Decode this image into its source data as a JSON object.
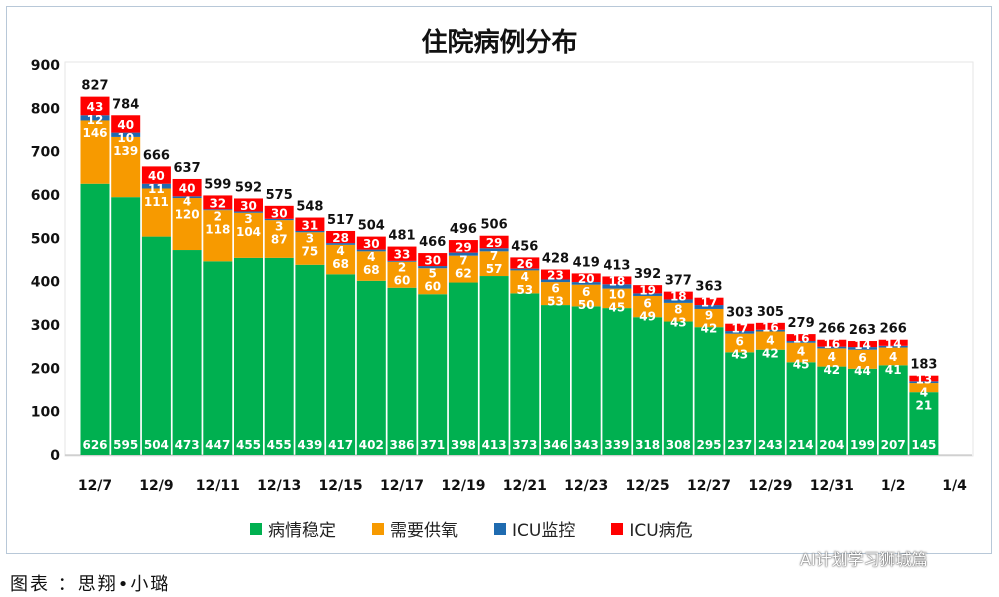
{
  "chart_data": {
    "type": "bar",
    "stacked": true,
    "title": "住院病例分布",
    "categories": [
      "12/7",
      "12/8",
      "12/9",
      "12/10",
      "12/11",
      "12/12",
      "12/13",
      "12/14",
      "12/15",
      "12/16",
      "12/17",
      "12/18",
      "12/19",
      "12/20",
      "12/21",
      "12/22",
      "12/23",
      "12/24",
      "12/25",
      "12/26",
      "12/27",
      "12/28",
      "12/29",
      "12/30",
      "12/31",
      "1/1",
      "1/2",
      "1/3"
    ],
    "x_tick_labels": [
      "12/7",
      "12/9",
      "12/11",
      "12/13",
      "12/15",
      "12/17",
      "12/19",
      "12/21",
      "12/23",
      "12/25",
      "12/27",
      "12/29",
      "12/31",
      "1/2",
      "1/4"
    ],
    "ylim": [
      0,
      900
    ],
    "y_ticks": [
      0,
      100,
      200,
      300,
      400,
      500,
      600,
      700,
      800,
      900
    ],
    "grid": false,
    "legend": "bottom",
    "series": [
      {
        "name": "病情稳定",
        "color": "#00b050",
        "values": [
          626,
          595,
          504,
          473,
          447,
          455,
          455,
          439,
          417,
          402,
          386,
          371,
          398,
          413,
          373,
          346,
          343,
          339,
          318,
          308,
          295,
          237,
          243,
          214,
          204,
          199,
          207,
          145
        ]
      },
      {
        "name": "需要供氧",
        "color": "#f79a00",
        "values": [
          146,
          139,
          111,
          120,
          118,
          104,
          87,
          75,
          68,
          68,
          60,
          60,
          62,
          57,
          53,
          53,
          50,
          45,
          49,
          43,
          42,
          43,
          42,
          45,
          42,
          44,
          41,
          21
        ]
      },
      {
        "name": "ICU监控",
        "color": "#1f6bb0",
        "values": [
          12,
          10,
          11,
          4,
          2,
          3,
          3,
          3,
          4,
          4,
          2,
          5,
          7,
          7,
          4,
          6,
          6,
          10,
          6,
          8,
          9,
          6,
          4,
          4,
          4,
          6,
          4,
          4
        ]
      },
      {
        "name": "ICU病危",
        "color": "#ff0000",
        "values": [
          43,
          40,
          40,
          40,
          32,
          30,
          30,
          31,
          28,
          30,
          33,
          30,
          29,
          29,
          26,
          23,
          20,
          18,
          19,
          18,
          17,
          17,
          16,
          16,
          16,
          14,
          14,
          13
        ]
      }
    ],
    "totals": [
      827,
      784,
      666,
      637,
      599,
      592,
      575,
      548,
      517,
      504,
      481,
      466,
      496,
      506,
      456,
      428,
      419,
      413,
      392,
      377,
      363,
      303,
      305,
      279,
      266,
      263,
      266,
      183
    ]
  },
  "caption": "图表 ：思翔•小璐",
  "watermark": "AI计划学习狮城篇"
}
